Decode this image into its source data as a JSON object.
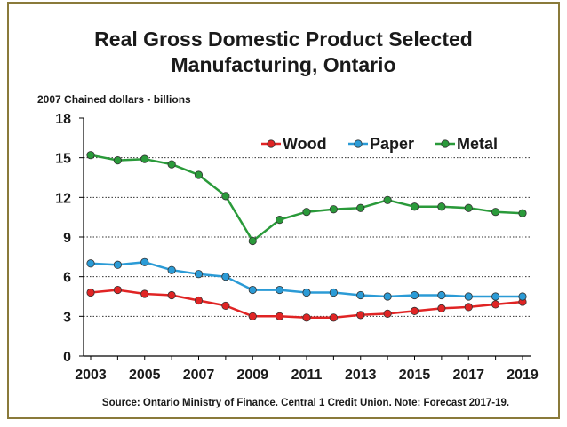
{
  "chart_data": {
    "type": "line",
    "title_lines": [
      "Real Gross Domestic Product Selected",
      "Manufacturing, Ontario"
    ],
    "unit_label": "2007 Chained dollars - billions",
    "x": [
      2003,
      2004,
      2005,
      2006,
      2007,
      2008,
      2009,
      2010,
      2011,
      2012,
      2013,
      2014,
      2015,
      2016,
      2017,
      2018,
      2019
    ],
    "xticks": [
      "2003",
      "2005",
      "2007",
      "2009",
      "2011",
      "2013",
      "2015",
      "2017",
      "2019"
    ],
    "ylim": [
      0,
      18
    ],
    "yticks": [
      "0",
      "3",
      "6",
      "9",
      "12",
      "15",
      "18"
    ],
    "grid": "horizontal dotted",
    "legend_position": "top-right",
    "series": [
      {
        "name": "Wood",
        "color": "#e02424",
        "values": [
          4.8,
          5.0,
          4.7,
          4.6,
          4.2,
          3.8,
          3.0,
          3.0,
          2.9,
          2.9,
          3.1,
          3.2,
          3.4,
          3.6,
          3.7,
          3.9,
          4.1
        ]
      },
      {
        "name": "Paper",
        "color": "#2b9bd6",
        "values": [
          7.0,
          6.9,
          7.1,
          6.5,
          6.2,
          6.0,
          5.0,
          5.0,
          4.8,
          4.8,
          4.6,
          4.5,
          4.6,
          4.6,
          4.5,
          4.5,
          4.5
        ]
      },
      {
        "name": "Metal",
        "color": "#2a9a3a",
        "values": [
          15.2,
          14.8,
          14.9,
          14.5,
          13.7,
          12.1,
          8.7,
          10.3,
          10.9,
          11.1,
          11.2,
          11.8,
          11.3,
          11.3,
          11.2,
          10.9,
          10.8
        ]
      }
    ],
    "source": "Source: Ontario Ministry of Finance. Central 1 Credit Union.  Note: Forecast 2017-19."
  }
}
